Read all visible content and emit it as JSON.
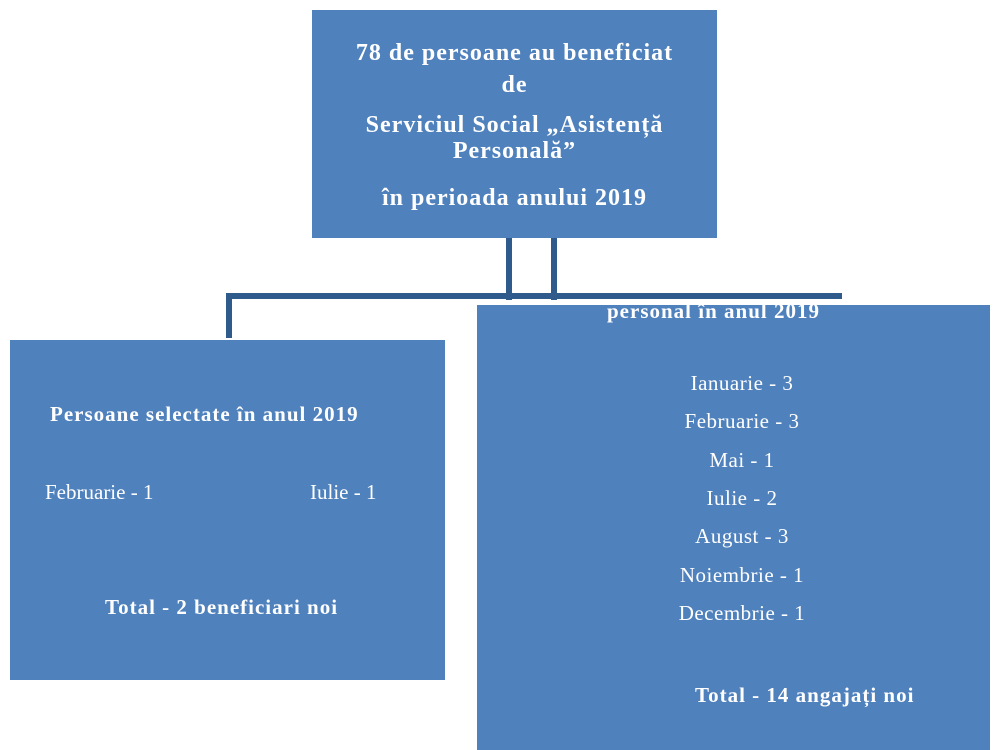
{
  "top_box": {
    "lines": [
      "78 de persoane au beneficiat",
      "de",
      "Serviciul Social „Asistență",
      "Personală”",
      "în perioada anului 2019"
    ]
  },
  "left_box": {
    "title": "Persoane selectate în anul 2019",
    "items": [
      "Februarie - 1",
      "Iulie - 1"
    ],
    "total": "Total - 2 beneficiari noi"
  },
  "right_box": {
    "title": "personal  în anul 2019",
    "items": [
      "Ianuarie - 3",
      "Februarie - 3",
      "Mai - 1",
      "Iulie - 2",
      "August - 3",
      "Noiembrie - 1",
      "Decembrie - 1"
    ],
    "total": "Total -  14 angajați noi"
  }
}
